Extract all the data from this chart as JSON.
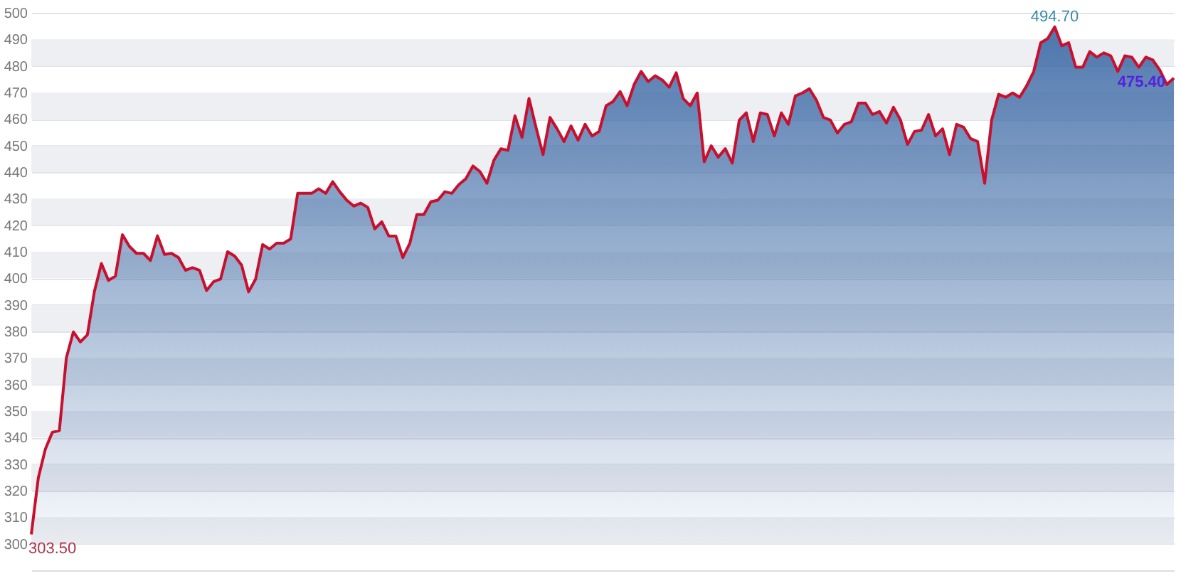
{
  "chart_data": {
    "type": "area",
    "categories": [
      null,
      null,
      null,
      null,
      null,
      null,
      null,
      null,
      null,
      null,
      null,
      null,
      null,
      null,
      null,
      null,
      null,
      null,
      null,
      null,
      null,
      null,
      null,
      null,
      null,
      null,
      null,
      null,
      null,
      null,
      null,
      null,
      null,
      null,
      null,
      null,
      null,
      null,
      null,
      null,
      null,
      null,
      null,
      null,
      null,
      null,
      null,
      null,
      null,
      null,
      null,
      null,
      null,
      null,
      null,
      null,
      null,
      null,
      null,
      null,
      null,
      null,
      null,
      null,
      null,
      null,
      null,
      null,
      null,
      null,
      null,
      null,
      null,
      null,
      null,
      null,
      null,
      null,
      null,
      null,
      null,
      null,
      null,
      null,
      null,
      null,
      null,
      null,
      null,
      null,
      null,
      null,
      null,
      null,
      null,
      null,
      null,
      null,
      null,
      null,
      null,
      null,
      null,
      null,
      null,
      null,
      null,
      null,
      null,
      null,
      null,
      null,
      null,
      null,
      null,
      null,
      null,
      null,
      null,
      null,
      null,
      null,
      null,
      null,
      null,
      null,
      null,
      null,
      null,
      null,
      null,
      null,
      null,
      null,
      null,
      null,
      null,
      null,
      null,
      null,
      null,
      null,
      null,
      null,
      null,
      null,
      null,
      null,
      null,
      null,
      null,
      null,
      null,
      null,
      null,
      null,
      null,
      null,
      null,
      null,
      null,
      null,
      null,
      null
    ],
    "series": [
      {
        "color": "#c8102e",
        "values": [
          303.5,
          324.8,
          335.6,
          342,
          342.6,
          370,
          379.8,
          376,
          378.7,
          395,
          405.6,
          399.2,
          400.8,
          416.4,
          412,
          409.4,
          409.4,
          406.7,
          416,
          409,
          409.4,
          407.8,
          403,
          404,
          403,
          395.4,
          398.7,
          399.7,
          410,
          408.4,
          405,
          394.9,
          399.7,
          412.7,
          411,
          413.2,
          413.2,
          414.8,
          432,
          432,
          432,
          433.7,
          432,
          436.4,
          432.6,
          429.4,
          427.2,
          428.3,
          426.7,
          418.6,
          421.3,
          415.9,
          415.9,
          407.8,
          413.2,
          424,
          424,
          428.8,
          429.4,
          432.6,
          432,
          435.3,
          437.5,
          442.3,
          440.2,
          435.8,
          444.5,
          448.8,
          448.2,
          461.2,
          453.1,
          467.7,
          456.9,
          446.6,
          460.6,
          456.3,
          451.5,
          457.4,
          452,
          458,
          453.6,
          455.3,
          465,
          466.6,
          470.3,
          465,
          473,
          477.9,
          474.1,
          476.3,
          474.7,
          472,
          477.4,
          467.7,
          465,
          469.8,
          443.9,
          449.9,
          445.6,
          448.8,
          443.4,
          459.6,
          462.3,
          451.5,
          462.3,
          461.7,
          453.6,
          462.3,
          458,
          468.7,
          469.8,
          471.4,
          467.1,
          460.6,
          459.6,
          454.7,
          458,
          459,
          466,
          466,
          461.7,
          462.8,
          458.5,
          464.4,
          459.6,
          450.4,
          455.3,
          455.8,
          461.7,
          453.6,
          456.3,
          446.6,
          458,
          456.9,
          452.6,
          451.5,
          435.8,
          459.6,
          469.3,
          468.2,
          469.8,
          468.2,
          472.5,
          477.9,
          488.7,
          490.3,
          494.7,
          487.6,
          488.7,
          479.5,
          479.5,
          485.4,
          483.3,
          484.9,
          483.8,
          477.9,
          483.8,
          483.3,
          479.5,
          483.3,
          482.2,
          478.4,
          473,
          475.4
        ]
      }
    ],
    "ylim": [
      290,
      500
    ],
    "yticks": [
      300,
      310,
      320,
      330,
      340,
      350,
      360,
      370,
      380,
      390,
      400,
      410,
      420,
      430,
      440,
      450,
      460,
      470,
      480,
      490,
      500
    ],
    "grid": "y",
    "tick_labels": "y",
    "annotations": [
      "303.50",
      "494.70",
      "475.40"
    ]
  }
}
